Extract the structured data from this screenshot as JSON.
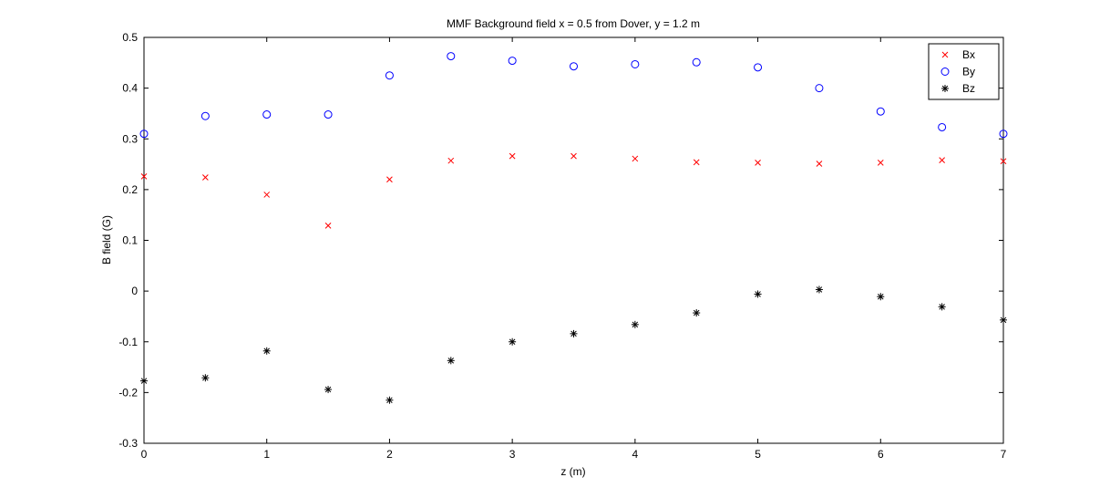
{
  "chart_data": {
    "type": "scatter",
    "title": "MMF Background field x = 0.5 from Dover, y = 1.2 m",
    "xlabel": "z (m)",
    "ylabel": "B field (G)",
    "xlim": [
      0,
      7
    ],
    "ylim": [
      -0.3,
      0.5
    ],
    "xticks": [
      0,
      1,
      2,
      3,
      4,
      5,
      6,
      7
    ],
    "yticks": [
      -0.3,
      -0.2,
      -0.1,
      0,
      0.1,
      0.2,
      0.3,
      0.4,
      0.5
    ],
    "xtick_labels": [
      "0",
      "1",
      "2",
      "3",
      "4",
      "5",
      "6",
      "7"
    ],
    "ytick_labels": [
      "-0.3",
      "-0.2",
      "-0.1",
      "0",
      "0.1",
      "0.2",
      "0.3",
      "0.4",
      "0.5"
    ],
    "grid": false,
    "legend_position": "top-right",
    "x": [
      0,
      0.5,
      1,
      1.5,
      2,
      2.5,
      3,
      3.5,
      4,
      4.5,
      5,
      5.5,
      6,
      6.5,
      7
    ],
    "series": [
      {
        "name": "Bx",
        "marker": "x",
        "color": "#ff0000",
        "values": [
          0.226,
          0.224,
          0.19,
          0.129,
          0.22,
          0.257,
          0.266,
          0.266,
          0.261,
          0.254,
          0.253,
          0.251,
          0.253,
          0.258,
          0.256
        ]
      },
      {
        "name": "By",
        "marker": "o",
        "color": "#0000ff",
        "values": [
          0.31,
          0.345,
          0.348,
          0.348,
          0.425,
          0.463,
          0.454,
          0.443,
          0.447,
          0.451,
          0.441,
          0.4,
          0.354,
          0.323,
          0.31
        ]
      },
      {
        "name": "Bz",
        "marker": "*",
        "color": "#000000",
        "values": [
          -0.177,
          -0.171,
          -0.118,
          -0.194,
          -0.215,
          -0.137,
          -0.1,
          -0.084,
          -0.066,
          -0.043,
          -0.006,
          0.003,
          -0.011,
          -0.031,
          -0.057
        ]
      }
    ]
  }
}
